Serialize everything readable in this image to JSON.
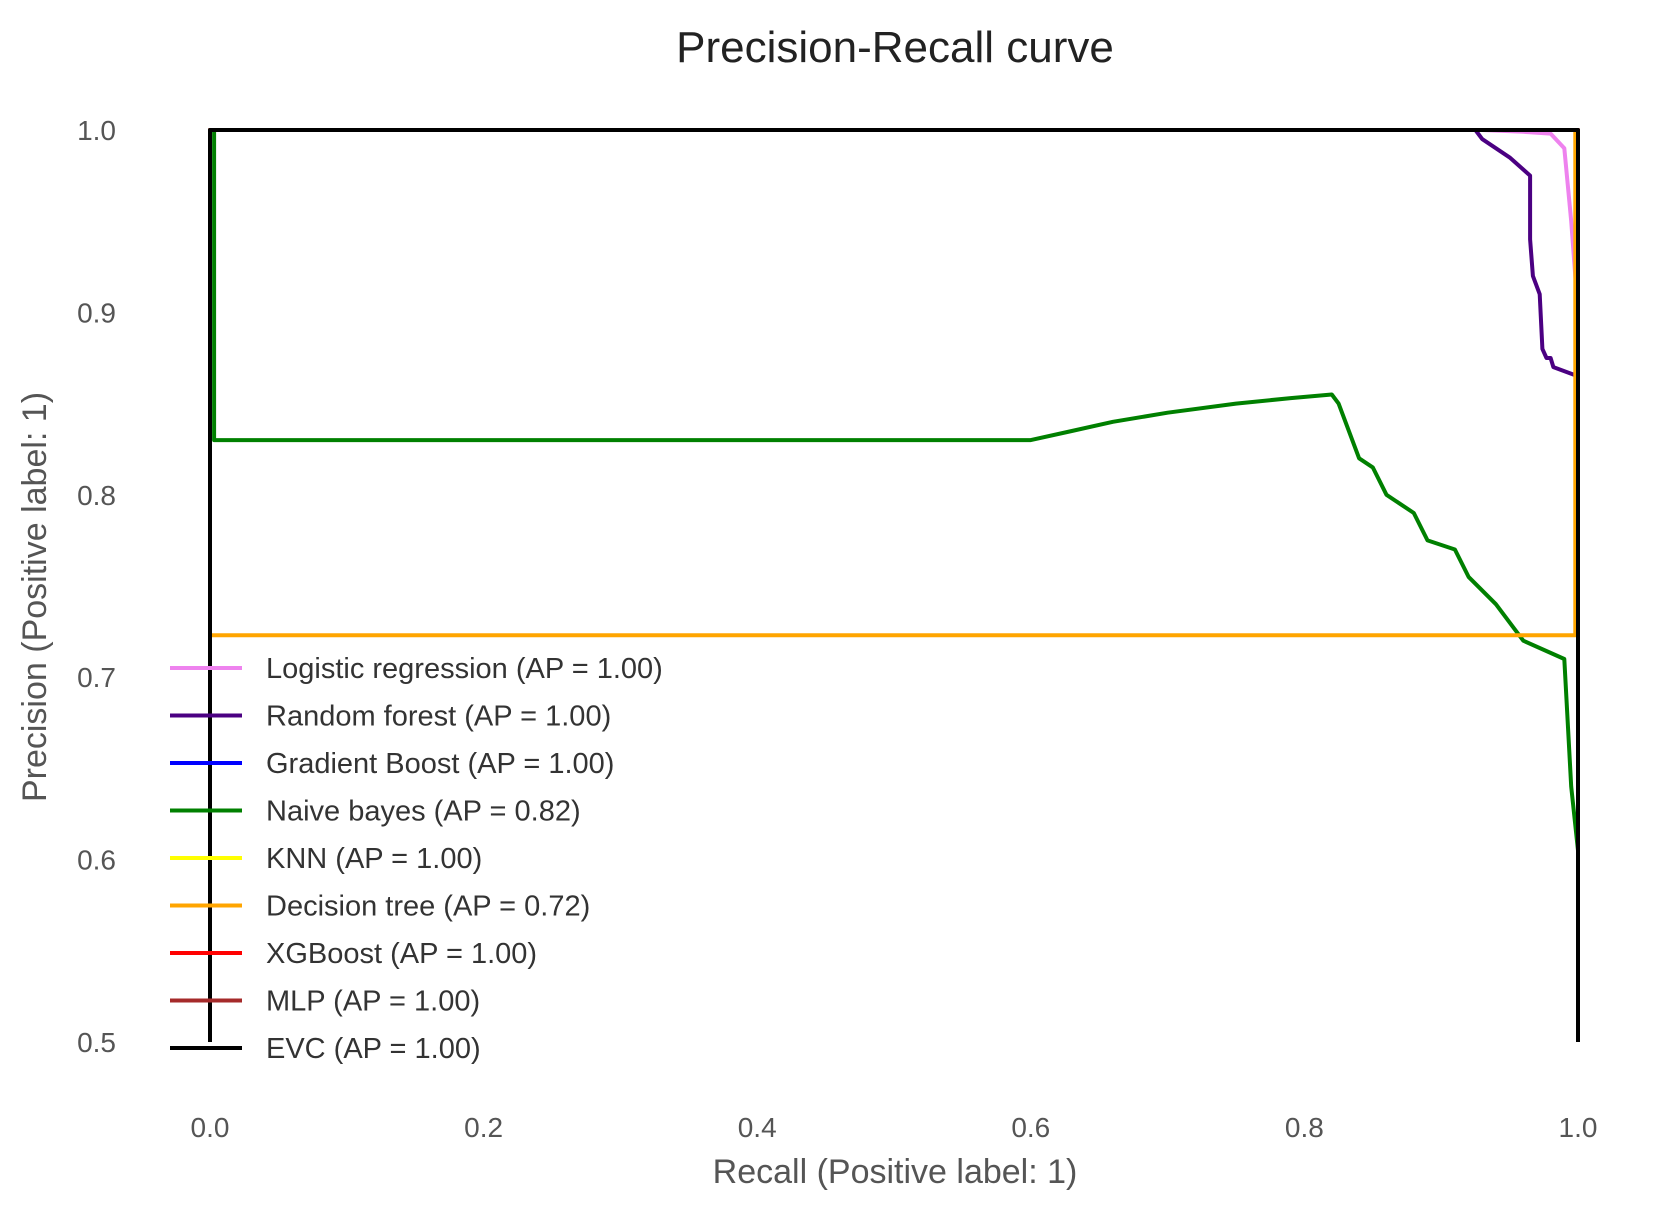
{
  "chart_data": {
    "type": "line",
    "title": "Precision-Recall curve",
    "xlabel": "Recall (Positive label: 1)",
    "ylabel": "Precision (Positive label: 1)",
    "xlim": [
      0.0,
      1.0
    ],
    "ylim": [
      0.5,
      1.0
    ],
    "xticks": [
      "0.0",
      "0.2",
      "0.4",
      "0.6",
      "0.8",
      "1.0"
    ],
    "yticks": [
      "0.5",
      "0.6",
      "0.7",
      "0.8",
      "0.9",
      "1.0"
    ],
    "grid": false,
    "legend_position": "lower-left",
    "series": [
      {
        "name": "Logistic regression (AP = 1.00)",
        "color": "#ee82ee",
        "x": [
          0.0,
          0.0,
          0.93,
          0.96,
          0.98,
          0.99,
          0.995,
          1.0,
          1.0
        ],
        "y": [
          0.5,
          1.0,
          1.0,
          0.999,
          0.998,
          0.99,
          0.95,
          0.9,
          0.5
        ]
      },
      {
        "name": "Random forest (AP = 1.00)",
        "color": "#4b0082",
        "x": [
          0.0,
          0.0,
          0.925,
          0.93,
          0.95,
          0.965,
          0.965,
          0.967,
          0.972,
          0.974,
          0.977,
          0.98,
          0.982,
          1.0,
          1.0
        ],
        "y": [
          0.5,
          1.0,
          1.0,
          0.995,
          0.985,
          0.975,
          0.94,
          0.92,
          0.91,
          0.88,
          0.875,
          0.875,
          0.87,
          0.865,
          0.5
        ]
      },
      {
        "name": "Gradient Boost (AP = 1.00)",
        "color": "#0000ff",
        "x": [
          0.0,
          0.0,
          1.0,
          1.0
        ],
        "y": [
          0.5,
          1.0,
          1.0,
          0.5
        ]
      },
      {
        "name": "Naive bayes (AP = 0.82)",
        "color": "#008000",
        "x": [
          0.003,
          0.003,
          0.6,
          0.63,
          0.66,
          0.7,
          0.75,
          0.79,
          0.82,
          0.825,
          0.84,
          0.85,
          0.86,
          0.88,
          0.89,
          0.91,
          0.92,
          0.94,
          0.96,
          0.99,
          0.995,
          1.0
        ],
        "y": [
          1.0,
          0.83,
          0.83,
          0.835,
          0.84,
          0.845,
          0.85,
          0.853,
          0.855,
          0.85,
          0.82,
          0.815,
          0.8,
          0.79,
          0.775,
          0.77,
          0.755,
          0.74,
          0.72,
          0.71,
          0.64,
          0.605
        ]
      },
      {
        "name": "KNN (AP = 1.00)",
        "color": "#ffff00",
        "x": [
          0.0,
          0.0,
          1.0,
          1.0
        ],
        "y": [
          0.5,
          1.0,
          1.0,
          0.5
        ]
      },
      {
        "name": "Decision tree (AP = 0.72)",
        "color": "#ffa500",
        "x": [
          0.0,
          0.0,
          0.998,
          0.998,
          0.0,
          0.0
        ],
        "y": [
          0.5,
          1.0,
          1.0,
          0.723,
          0.723,
          1.0
        ]
      },
      {
        "name": "XGBoost (AP = 1.00)",
        "color": "#ff0000",
        "x": [
          0.0,
          0.0,
          1.0,
          1.0
        ],
        "y": [
          0.5,
          1.0,
          1.0,
          0.5
        ]
      },
      {
        "name": "MLP (AP = 1.00)",
        "color": "#a52a2a",
        "x": [
          0.0,
          0.0,
          1.0,
          1.0
        ],
        "y": [
          0.5,
          1.0,
          1.0,
          0.5
        ]
      },
      {
        "name": "EVC (AP = 1.00)",
        "color": "#000000",
        "x": [
          0.0,
          0.0,
          1.0,
          1.0
        ],
        "y": [
          0.5,
          1.0,
          1.0,
          0.5
        ]
      }
    ]
  }
}
